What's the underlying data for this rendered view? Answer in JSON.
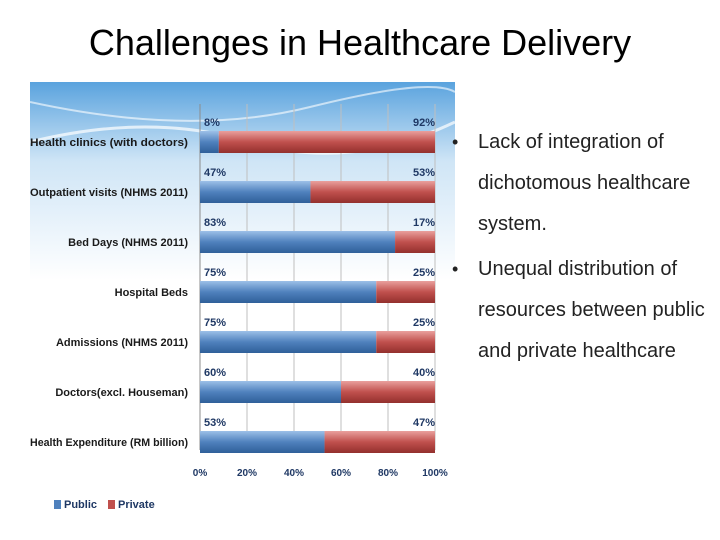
{
  "slide": {
    "title": "Challenges in Healthcare Delivery"
  },
  "bullets": [
    "Lack of integration of dichotomous healthcare system.",
    "Unequal distribution of resources between public and private healthcare"
  ],
  "chart_data": {
    "type": "bar",
    "orientation": "horizontal",
    "stacked": true,
    "percent": true,
    "categories": [
      "Health clinics (with doctors)",
      "Outpatient visits (NHMS 2011)",
      "Bed Days (NHMS 2011)",
      "Hospital Beds",
      "Admissions (NHMS 2011)",
      "Doctors(excl. Houseman)",
      "Health Expenditure (RM billion)"
    ],
    "series": [
      {
        "name": "Public",
        "color": "#4f81bd",
        "values": [
          8,
          47,
          83,
          75,
          75,
          60,
          53
        ],
        "labels": [
          "8%",
          "47%",
          "83%",
          "75%",
          "75%",
          "60%",
          "53%"
        ]
      },
      {
        "name": "Private",
        "color": "#c0504d",
        "values": [
          92,
          53,
          17,
          25,
          25,
          40,
          47
        ],
        "labels": [
          "92%",
          "53%",
          "17%",
          "25%",
          "25%",
          "40%",
          "47%"
        ]
      }
    ],
    "xlim": [
      0,
      100
    ],
    "xticks": [
      "0%",
      "20%",
      "40%",
      "60%",
      "80%",
      "100%"
    ],
    "grid": true,
    "legend": "bottom-left",
    "label_color": "#1f3864",
    "title": "",
    "xlabel": "",
    "ylabel": ""
  }
}
